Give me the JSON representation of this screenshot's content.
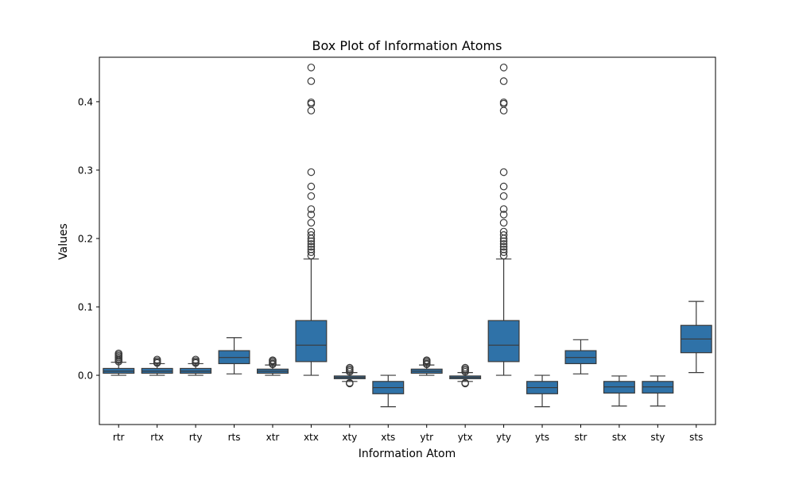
{
  "chart_data": {
    "type": "box",
    "title": "Box Plot of Information Atoms",
    "xlabel": "Information Atom",
    "ylabel": "Values",
    "ylim": [
      -0.072,
      0.465
    ],
    "yticks": [
      0.0,
      0.1,
      0.2,
      0.3,
      0.4
    ],
    "ytick_labels": [
      "0.0",
      "0.1",
      "0.2",
      "0.3",
      "0.4"
    ],
    "grid": false,
    "categories": [
      "rtr",
      "rtx",
      "rty",
      "rts",
      "xtr",
      "xtx",
      "xty",
      "xts",
      "ytr",
      "ytx",
      "yty",
      "yts",
      "str",
      "stx",
      "sty",
      "sts"
    ],
    "box_color": "#2f72a8",
    "line_color": "#3a3a3a",
    "boxes": [
      {
        "label": "rtr",
        "whisker_low": 0.0,
        "q1": 0.003,
        "median": 0.006,
        "q3": 0.01,
        "whisker_high": 0.019,
        "outliers": [
          0.02,
          0.022,
          0.024,
          0.026,
          0.028,
          0.03,
          0.032
        ]
      },
      {
        "label": "rtx",
        "whisker_low": 0.0,
        "q1": 0.003,
        "median": 0.006,
        "q3": 0.01,
        "whisker_high": 0.017,
        "outliers": [
          0.018,
          0.019,
          0.021,
          0.023
        ]
      },
      {
        "label": "rty",
        "whisker_low": 0.0,
        "q1": 0.003,
        "median": 0.006,
        "q3": 0.01,
        "whisker_high": 0.017,
        "outliers": [
          0.018,
          0.019,
          0.021,
          0.023
        ]
      },
      {
        "label": "rts",
        "whisker_low": 0.002,
        "q1": 0.017,
        "median": 0.026,
        "q3": 0.036,
        "whisker_high": 0.055,
        "outliers": []
      },
      {
        "label": "xtr",
        "whisker_low": 0.0,
        "q1": 0.003,
        "median": 0.006,
        "q3": 0.009,
        "whisker_high": 0.015,
        "outliers": [
          0.016,
          0.017,
          0.019,
          0.021,
          0.022
        ]
      },
      {
        "label": "xtx",
        "whisker_low": 0.0,
        "q1": 0.02,
        "median": 0.044,
        "q3": 0.08,
        "whisker_high": 0.17,
        "outliers": [
          0.175,
          0.18,
          0.184,
          0.188,
          0.192,
          0.196,
          0.2,
          0.205,
          0.21,
          0.223,
          0.235,
          0.243,
          0.262,
          0.276,
          0.297,
          0.387,
          0.397,
          0.399,
          0.43,
          0.45
        ]
      },
      {
        "label": "xty",
        "whisker_low": -0.009,
        "q1": -0.005,
        "median": -0.003,
        "q3": -0.001,
        "whisker_high": 0.004,
        "outliers": [
          -0.011,
          -0.012,
          0.005,
          0.007,
          0.009,
          0.011
        ]
      },
      {
        "label": "xts",
        "whisker_low": -0.046,
        "q1": -0.027,
        "median": -0.018,
        "q3": -0.009,
        "whisker_high": 0.0,
        "outliers": []
      },
      {
        "label": "ytr",
        "whisker_low": 0.0,
        "q1": 0.003,
        "median": 0.006,
        "q3": 0.009,
        "whisker_high": 0.015,
        "outliers": [
          0.016,
          0.017,
          0.019,
          0.021,
          0.022
        ]
      },
      {
        "label": "ytx",
        "whisker_low": -0.009,
        "q1": -0.005,
        "median": -0.003,
        "q3": -0.001,
        "whisker_high": 0.004,
        "outliers": [
          -0.011,
          -0.012,
          0.005,
          0.007,
          0.009,
          0.011
        ]
      },
      {
        "label": "yty",
        "whisker_low": 0.0,
        "q1": 0.02,
        "median": 0.044,
        "q3": 0.08,
        "whisker_high": 0.17,
        "outliers": [
          0.175,
          0.18,
          0.184,
          0.188,
          0.192,
          0.196,
          0.2,
          0.205,
          0.21,
          0.223,
          0.235,
          0.243,
          0.262,
          0.276,
          0.297,
          0.387,
          0.397,
          0.399,
          0.43,
          0.45
        ]
      },
      {
        "label": "yts",
        "whisker_low": -0.046,
        "q1": -0.027,
        "median": -0.018,
        "q3": -0.009,
        "whisker_high": 0.0,
        "outliers": []
      },
      {
        "label": "str",
        "whisker_low": 0.002,
        "q1": 0.017,
        "median": 0.026,
        "q3": 0.036,
        "whisker_high": 0.052,
        "outliers": []
      },
      {
        "label": "stx",
        "whisker_low": -0.045,
        "q1": -0.026,
        "median": -0.017,
        "q3": -0.009,
        "whisker_high": -0.001,
        "outliers": []
      },
      {
        "label": "sty",
        "whisker_low": -0.045,
        "q1": -0.026,
        "median": -0.017,
        "q3": -0.009,
        "whisker_high": -0.001,
        "outliers": []
      },
      {
        "label": "sts",
        "whisker_low": 0.004,
        "q1": 0.033,
        "median": 0.053,
        "q3": 0.073,
        "whisker_high": 0.108,
        "outliers": []
      }
    ]
  }
}
